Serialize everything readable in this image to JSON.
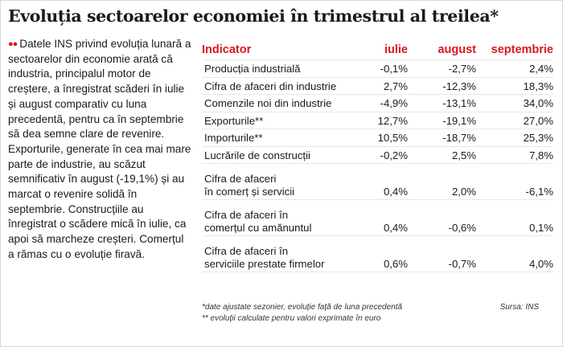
{
  "title": "Evoluția sectoarelor economiei în trimestrul al treilea*",
  "lede": {
    "bullet": "●●",
    "text": "Datele INS privind evoluția lunară a sectoarelor din economie arată că industria, principalul motor de creștere, a înregistrat scăderi în iulie și august comparativ cu luna precedentă, pentru ca în septembrie să dea semne clare de revenire. Exporturile, generate în cea mai mare parte de industrie, au scăzut semnificativ în august (-19,1%) și au marcat o revenire solidă în septembrie. Construcțiile au înregistrat o scădere mică în iulie, ca apoi să marcheze creșteri. Comerțul a rămas cu o evoluție firavă."
  },
  "table": {
    "headers": [
      "Indicator",
      "iulie",
      "august",
      "septembrie"
    ],
    "rows": [
      {
        "indicator": "Producția industrială",
        "iulie": "-0,1%",
        "august": "-2,7%",
        "septembrie": "2,4%"
      },
      {
        "indicator": "Cifra de afaceri din industrie",
        "iulie": "2,7%",
        "august": "-12,3%",
        "septembrie": "18,3%"
      },
      {
        "indicator": "Comenzile noi din industrie",
        "iulie": "-4,9%",
        "august": "-13,1%",
        "septembrie": "34,0%"
      },
      {
        "indicator": "Exporturile**",
        "iulie": "12,7%",
        "august": "-19,1%",
        "septembrie": "27,0%"
      },
      {
        "indicator": "Importurile**",
        "iulie": "10,5%",
        "august": "-18,7%",
        "septembrie": "25,3%"
      },
      {
        "indicator": "Lucrările de construcții",
        "iulie": "-0,2%",
        "august": "2,5%",
        "septembrie": "7,8%"
      },
      {
        "indicator_line1": "Cifra de afaceri",
        "indicator_line2": "în comerț și servicii",
        "iulie": "0,4%",
        "august": "2,0%",
        "septembrie": "-6,1%"
      },
      {
        "indicator_line1": "Cifra de afaceri în",
        "indicator_line2": "comerțul cu amănuntul",
        "iulie": "0,4%",
        "august": "-0,6%",
        "septembrie": "0,1%"
      },
      {
        "indicator_line1": "Cifra de afaceri în",
        "indicator_line2": "serviciile prestate firmelor",
        "iulie": "0,6%",
        "august": "-0,7%",
        "septembrie": "4,0%"
      }
    ]
  },
  "notes": {
    "note1": "*date ajustate sezonier, evoluție față de luna precedentă",
    "note2": "** evoluții calculate pentru valori exprimate în euro",
    "source": "Sursa: INS"
  },
  "colors": {
    "accent": "#d71920",
    "rule": "#e8e8e8",
    "text": "#1a1a1a"
  }
}
